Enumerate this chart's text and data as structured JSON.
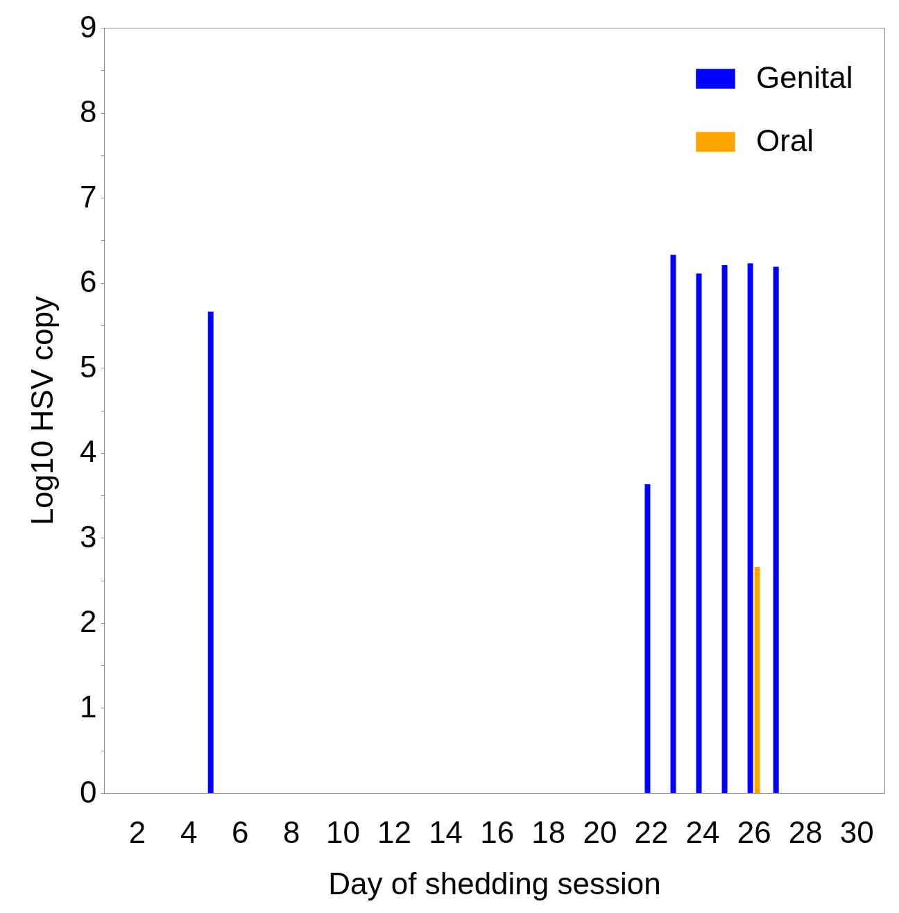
{
  "chart_data": {
    "type": "bar",
    "xlabel": "Day of shedding session",
    "ylabel": "Log10 HSV copy",
    "xlim": [
      0.85,
      30.95
    ],
    "xticks": [
      2,
      4,
      6,
      8,
      10,
      12,
      14,
      16,
      18,
      20,
      22,
      24,
      26,
      28,
      30
    ],
    "ylim": [
      0,
      9
    ],
    "yticks": [
      0,
      {
        "value": 0.5,
        "label": null
      },
      1,
      {
        "value": 1.5,
        "label": null
      },
      2,
      {
        "value": 2.5,
        "label": null
      },
      3,
      {
        "value": 3.5,
        "label": null
      },
      4,
      {
        "value": 4.5,
        "label": null
      },
      5,
      {
        "value": 5.5,
        "label": null
      },
      6,
      {
        "value": 6.5,
        "label": null
      },
      7,
      {
        "value": 7.5,
        "label": null
      },
      8,
      {
        "value": 8.5,
        "label": null
      },
      9
    ],
    "grid": false,
    "legend": "top right",
    "series": [
      {
        "name": "Genital",
        "color": "#0000ff",
        "x": [
          5,
          22,
          23,
          24,
          25,
          26,
          27
        ],
        "values": [
          5.66,
          3.63,
          6.33,
          6.11,
          6.21,
          6.23,
          6.19
        ]
      },
      {
        "name": "Oral",
        "color": "#ffa500",
        "x": [
          26
        ],
        "values": [
          2.66
        ]
      }
    ]
  }
}
